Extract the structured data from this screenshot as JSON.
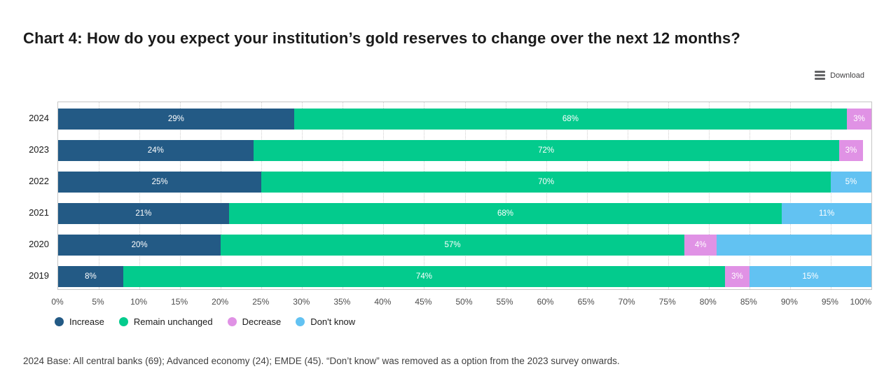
{
  "title": "Chart 4: How do you expect your institution’s gold reserves to change over the next 12 months?",
  "toolbar": {
    "download_label": "Download",
    "menu_icon": "hamburger-menu-icon"
  },
  "colors": {
    "increase": "#235a85",
    "remain_unchanged": "#03cb8d",
    "decrease": "#e092e5",
    "dont_know": "#62c2f2",
    "grid_line": "#cdcdcd",
    "plot_border": "#c6c6c6",
    "bar_label_text": "#ffffff",
    "axis_text": "#4d4d4d"
  },
  "chart_data": {
    "type": "bar",
    "orientation": "horizontal",
    "stacked": true,
    "unit": "%",
    "xlim": [
      0,
      100
    ],
    "grid": "vertical dotted lines every 5%",
    "legend_position": "bottom-left",
    "categories": [
      "2024",
      "2023",
      "2022",
      "2021",
      "2020",
      "2019"
    ],
    "series": [
      {
        "name": "Increase",
        "color_key": "increase",
        "values": [
          29,
          24,
          25,
          21,
          20,
          8
        ]
      },
      {
        "name": "Remain unchanged",
        "color_key": "remain_unchanged",
        "values": [
          68,
          72,
          70,
          68,
          57,
          74
        ]
      },
      {
        "name": "Decrease",
        "color_key": "decrease",
        "values": [
          3,
          3,
          0,
          0,
          4,
          3
        ]
      },
      {
        "name": "Don't know",
        "color_key": "dont_know",
        "values": [
          0,
          0,
          5,
          11,
          19,
          15
        ]
      }
    ],
    "hidden_segment_labels": [
      {
        "category": "2020",
        "series": "Don't know"
      }
    ],
    "x_ticks": [
      "0%",
      "5%",
      "10%",
      "15%",
      "20%",
      "25%",
      "30%",
      "35%",
      "40%",
      "45%",
      "50%",
      "55%",
      "60%",
      "65%",
      "70%",
      "75%",
      "80%",
      "85%",
      "90%",
      "95%",
      "100%"
    ]
  },
  "footnote": "2024 Base: All central banks (69); Advanced economy (24); EMDE (45). “Don’t know” was removed as a option from the 2023 survey onwards."
}
